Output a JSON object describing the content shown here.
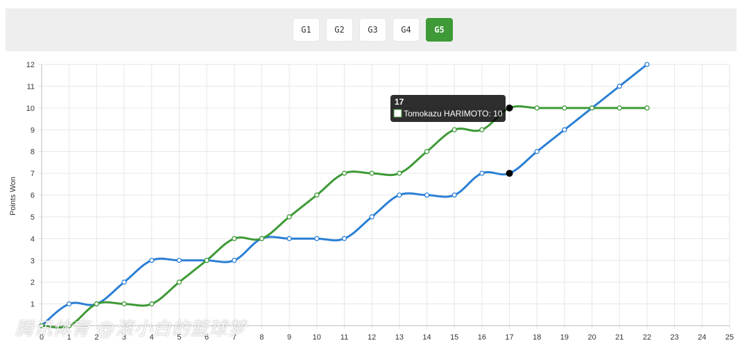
{
  "tabs": [
    {
      "label": "G1",
      "active": false
    },
    {
      "label": "G2",
      "active": false
    },
    {
      "label": "G3",
      "active": false
    },
    {
      "label": "G4",
      "active": false
    },
    {
      "label": "G5",
      "active": true
    }
  ],
  "colors": {
    "series1": "#2a7fd4",
    "series2": "#3d9a36",
    "active_tab": "#3d9a36"
  },
  "chart_data": {
    "type": "line",
    "xlabel": "",
    "ylabel": "Points Won",
    "xlim": [
      0,
      25
    ],
    "ylim": [
      0,
      12
    ],
    "grid": true,
    "x_ticks": [
      0,
      1,
      2,
      3,
      4,
      5,
      6,
      7,
      8,
      9,
      10,
      11,
      12,
      13,
      14,
      15,
      16,
      17,
      18,
      19,
      20,
      21,
      22,
      23,
      24,
      25
    ],
    "y_ticks": [
      1,
      2,
      3,
      4,
      5,
      6,
      7,
      8,
      9,
      10,
      11,
      12
    ],
    "series": [
      {
        "color": "#2a7fd4",
        "x": [
          0,
          1,
          2,
          3,
          4,
          5,
          6,
          7,
          8,
          9,
          10,
          11,
          12,
          13,
          14,
          15,
          16,
          17,
          18,
          19,
          20,
          21,
          22
        ],
        "y": [
          0,
          1,
          1,
          2,
          3,
          3,
          3,
          3,
          4,
          4,
          4,
          4,
          5,
          6,
          6,
          6,
          7,
          7,
          8,
          9,
          10,
          11,
          12
        ]
      },
      {
        "name": "Tomokazu HARIMOTO",
        "color": "#3d9a36",
        "x": [
          0,
          1,
          2,
          3,
          4,
          5,
          6,
          7,
          8,
          9,
          10,
          11,
          12,
          13,
          14,
          15,
          16,
          17,
          18,
          19,
          20,
          21,
          22
        ],
        "y": [
          0,
          0,
          1,
          1,
          1,
          2,
          3,
          4,
          4,
          5,
          6,
          7,
          7,
          7,
          8,
          9,
          9,
          10,
          10,
          10,
          10,
          10,
          10
        ]
      }
    ],
    "tooltip": {
      "title": "17",
      "series_label": "Tomokazu HARIMOTO",
      "value": "10",
      "text": "Tomokazu HARIMOTO: 10",
      "x": 17
    }
  },
  "watermark": "腾讯体育 @滚小白的篮球梦"
}
